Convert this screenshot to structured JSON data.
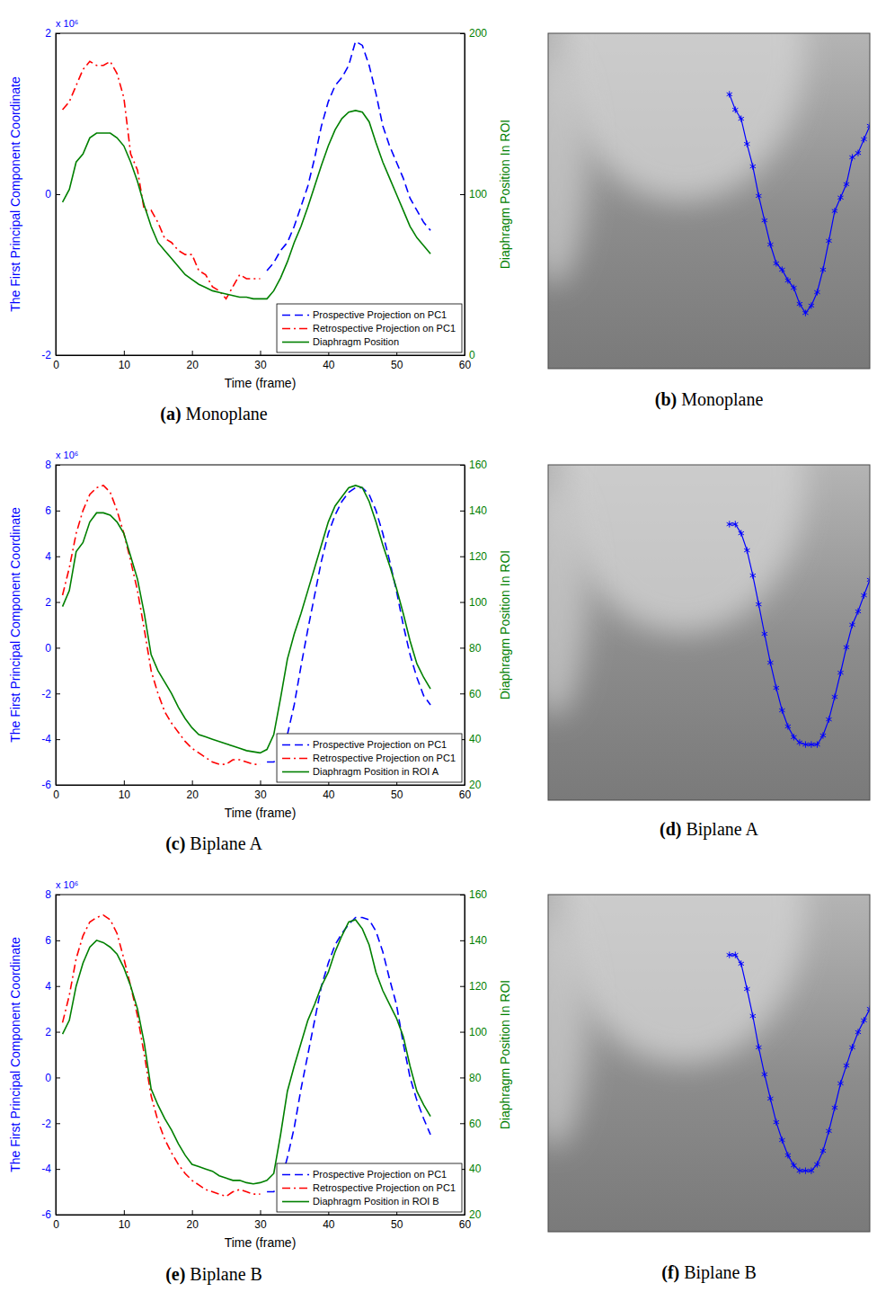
{
  "chart_data": [
    {
      "type": "line",
      "title": "(a) Monoplane",
      "x_label": "Time (frame)",
      "y_label": "The First Principal Component Coordinate",
      "y2_label": "Diaphragm Position In ROI",
      "annotations": [
        "x 10⁶"
      ],
      "xlim": [
        0,
        60
      ],
      "xticks": [
        0,
        10,
        20,
        30,
        40,
        50,
        60
      ],
      "ylim": [
        -2,
        2
      ],
      "yticks": [
        -2,
        0,
        2
      ],
      "y2lim": [
        0,
        200
      ],
      "y2ticks": [
        0,
        100,
        200
      ],
      "legend": "lower right",
      "series": [
        {
          "name": "Prospective Projection on PC1",
          "color": "#0000ff",
          "line_style": "dashed",
          "x": [
            31,
            32,
            33,
            34,
            35,
            36,
            37,
            38,
            39,
            40,
            41,
            42,
            43,
            44,
            45,
            46,
            47,
            48,
            49,
            50,
            51,
            52,
            53,
            54,
            55
          ],
          "values": [
            -0.95,
            -0.85,
            -0.7,
            -0.6,
            -0.4,
            -0.15,
            0.1,
            0.45,
            0.85,
            1.15,
            1.35,
            1.45,
            1.6,
            1.9,
            1.85,
            1.6,
            1.25,
            0.85,
            0.6,
            0.4,
            0.2,
            -0.05,
            -0.2,
            -0.35,
            -0.45
          ]
        },
        {
          "name": "Retrospective Projection on PC1",
          "color": "#ff0000",
          "line_style": "dash-dot",
          "x": [
            1,
            2,
            3,
            4,
            5,
            6,
            7,
            8,
            9,
            10,
            11,
            12,
            13,
            14,
            15,
            16,
            17,
            18,
            19,
            20,
            21,
            22,
            23,
            24,
            25,
            26,
            27,
            28,
            29,
            30
          ],
          "values": [
            1.05,
            1.15,
            1.35,
            1.55,
            1.65,
            1.6,
            1.6,
            1.65,
            1.5,
            1.2,
            0.5,
            0.3,
            -0.2,
            -0.2,
            -0.35,
            -0.55,
            -0.6,
            -0.7,
            -0.75,
            -0.75,
            -0.95,
            -1.0,
            -1.15,
            -1.2,
            -1.3,
            -1.15,
            -1.0,
            -1.05,
            -1.05,
            -1.05
          ]
        },
        {
          "name": "Diaphragm Position",
          "color": "#008000",
          "line_style": "solid",
          "axis": "y2",
          "x": [
            1,
            2,
            3,
            4,
            5,
            6,
            7,
            8,
            9,
            10,
            11,
            12,
            13,
            14,
            15,
            16,
            17,
            18,
            19,
            20,
            21,
            22,
            23,
            24,
            25,
            26,
            27,
            28,
            29,
            30,
            31,
            32,
            33,
            34,
            35,
            36,
            37,
            38,
            39,
            40,
            41,
            42,
            43,
            44,
            45,
            46,
            47,
            48,
            49,
            50,
            51,
            52,
            53,
            54,
            55
          ],
          "values": [
            95,
            103,
            120,
            125,
            135,
            138,
            138,
            138,
            135,
            130,
            120,
            108,
            93,
            80,
            70,
            65,
            60,
            55,
            50,
            47,
            44,
            42,
            40,
            39,
            38,
            37,
            36,
            36,
            35,
            35,
            35,
            40,
            48,
            58,
            70,
            80,
            92,
            105,
            118,
            130,
            140,
            147,
            151,
            152,
            151,
            145,
            132,
            120,
            110,
            100,
            90,
            80,
            73,
            68,
            63
          ]
        }
      ]
    },
    {
      "type": "line",
      "title": "(b) Monoplane",
      "tick_labels": false,
      "xlim": [
        0,
        55
      ],
      "ylim": [
        0,
        100
      ],
      "series": [
        {
          "color": "#0000ff",
          "marker": "star",
          "line_style": "solid",
          "x": [
            31,
            32,
            33,
            34,
            35,
            36,
            37,
            38,
            39,
            40,
            41,
            42,
            43,
            44,
            45,
            46,
            47,
            48,
            49,
            50,
            51,
            52,
            53,
            54,
            55
          ],
          "values": [
            81.8,
            77.2,
            74.5,
            67,
            60.3,
            51.5,
            44.2,
            37,
            31.4,
            29.5,
            26.3,
            24.1,
            19.3,
            16.6,
            18.8,
            22.8,
            29.5,
            38.1,
            47,
            51,
            55,
            63,
            64.3,
            68.4,
            72.4
          ]
        }
      ]
    },
    {
      "type": "line",
      "title": "(c) Biplane A",
      "x_label": "Time (frame)",
      "y_label": "The First Principal Component Coordinate",
      "y2_label": "Diaphragm Position In ROI",
      "annotations": [
        "x 10⁶"
      ],
      "xlim": [
        0,
        60
      ],
      "xticks": [
        0,
        10,
        20,
        30,
        40,
        50,
        60
      ],
      "ylim": [
        -6,
        8
      ],
      "yticks": [
        -6,
        -4,
        -2,
        0,
        2,
        4,
        6,
        8
      ],
      "y2lim": [
        20,
        160
      ],
      "y2ticks": [
        20,
        40,
        60,
        80,
        100,
        120,
        140,
        160
      ],
      "legend": "lower right",
      "series": [
        {
          "name": "Prospective Projection on PC1",
          "color": "#0000ff",
          "line_style": "dashed",
          "x": [
            31,
            32,
            33,
            34,
            35,
            36,
            37,
            38,
            39,
            40,
            41,
            42,
            43,
            44,
            45,
            46,
            47,
            48,
            49,
            50,
            51,
            52,
            53,
            54,
            55
          ],
          "values": [
            -5,
            -5,
            -4.7,
            -3.8,
            -2.5,
            -0.8,
            0.8,
            2.3,
            3.8,
            5,
            5.8,
            6.4,
            6.8,
            7,
            7,
            6.7,
            6,
            5,
            3.8,
            2.5,
            1,
            -0.3,
            -1.3,
            -2.1,
            -2.5
          ]
        },
        {
          "name": "Retrospective Projection on PC1",
          "color": "#ff0000",
          "line_style": "dash-dot",
          "x": [
            1,
            2,
            3,
            4,
            5,
            6,
            7,
            8,
            9,
            10,
            11,
            12,
            13,
            14,
            15,
            16,
            17,
            18,
            19,
            20,
            21,
            22,
            23,
            24,
            25,
            26,
            27,
            28,
            29,
            30
          ],
          "values": [
            2.3,
            3.5,
            5,
            6,
            6.7,
            7,
            7.1,
            6.8,
            6,
            5,
            3.8,
            2.5,
            0.8,
            -1,
            -2,
            -2.8,
            -3.3,
            -3.7,
            -4.1,
            -4.4,
            -4.6,
            -4.8,
            -5,
            -5.1,
            -5.1,
            -4.9,
            -4.9,
            -5,
            -5.1,
            -5.1
          ]
        },
        {
          "name": "Diaphragm Position in ROI A",
          "color": "#008000",
          "line_style": "solid",
          "axis": "y2",
          "x": [
            1,
            2,
            3,
            4,
            5,
            6,
            7,
            8,
            9,
            10,
            11,
            12,
            13,
            14,
            15,
            16,
            17,
            18,
            19,
            20,
            21,
            22,
            23,
            24,
            25,
            26,
            27,
            28,
            29,
            30,
            31,
            32,
            33,
            34,
            35,
            36,
            37,
            38,
            39,
            40,
            41,
            42,
            43,
            44,
            45,
            46,
            47,
            48,
            49,
            50,
            51,
            52,
            53,
            54,
            55
          ],
          "values": [
            98,
            105,
            122,
            126,
            135,
            139,
            139,
            138,
            135,
            130,
            120,
            110,
            95,
            77,
            70,
            65,
            60,
            54,
            49,
            45,
            42,
            41,
            40,
            39,
            38,
            37,
            36,
            35,
            34.5,
            34,
            35.5,
            42,
            58,
            75,
            86,
            95,
            105,
            115,
            125,
            135,
            142,
            146,
            150,
            151,
            150,
            144,
            135,
            125,
            116,
            106,
            95,
            83,
            73,
            67,
            62
          ]
        }
      ]
    },
    {
      "type": "line",
      "title": "(d) Biplane A",
      "tick_labels": false,
      "xlim": [
        0,
        55
      ],
      "ylim": [
        0,
        100
      ],
      "series": [
        {
          "color": "#0000ff",
          "marker": "star",
          "line_style": "solid",
          "x": [
            31,
            32,
            33,
            34,
            35,
            36,
            37,
            38,
            39,
            40,
            41,
            42,
            43,
            44,
            45,
            46,
            47,
            48,
            49,
            50,
            51,
            52,
            53,
            54,
            55
          ],
          "values": [
            82.3,
            82.3,
            79.6,
            74.5,
            67,
            58.4,
            49.6,
            41,
            33.5,
            26.8,
            22,
            18.8,
            17.2,
            16.6,
            16.6,
            16.6,
            19.3,
            24.1,
            30.8,
            38,
            45.6,
            52.3,
            56.3,
            61.1,
            65.7
          ]
        }
      ]
    },
    {
      "type": "line",
      "title": "(e) Biplane B",
      "x_label": "Time (frame)",
      "y_label": "The First Principal Component Coordinate",
      "y2_label": "Diaphragm Position In ROI",
      "annotations": [
        "x 10⁶"
      ],
      "xlim": [
        0,
        60
      ],
      "xticks": [
        0,
        10,
        20,
        30,
        40,
        50,
        60
      ],
      "ylim": [
        -6,
        8
      ],
      "yticks": [
        -6,
        -4,
        -2,
        0,
        2,
        4,
        6,
        8
      ],
      "y2lim": [
        20,
        160
      ],
      "y2ticks": [
        20,
        40,
        60,
        80,
        100,
        120,
        140,
        160
      ],
      "legend": "lower right",
      "series": [
        {
          "name": "Prospective Projection on PC1",
          "color": "#0000ff",
          "line_style": "dashed",
          "x": [
            31,
            32,
            33,
            34,
            35,
            36,
            37,
            38,
            39,
            40,
            41,
            42,
            43,
            44,
            45,
            46,
            47,
            48,
            49,
            50,
            51,
            52,
            53,
            54,
            55
          ],
          "values": [
            -5,
            -5,
            -4.6,
            -3.5,
            -2.2,
            -0.5,
            1,
            2.5,
            4,
            5,
            5.8,
            6.3,
            6.7,
            7,
            7,
            6.9,
            6.4,
            5.5,
            4.3,
            3.2,
            1.5,
            0,
            -1,
            -1.8,
            -2.5
          ]
        },
        {
          "name": "Retrospective Projection on PC1",
          "color": "#ff0000",
          "line_style": "dash-dot",
          "x": [
            1,
            2,
            3,
            4,
            5,
            6,
            7,
            8,
            9,
            10,
            11,
            12,
            13,
            14,
            15,
            16,
            17,
            18,
            19,
            20,
            21,
            22,
            23,
            24,
            25,
            26,
            27,
            28,
            29,
            30
          ],
          "values": [
            2.4,
            3.6,
            5.2,
            6.2,
            6.8,
            7,
            7.1,
            6.9,
            6.3,
            5.2,
            4,
            2.7,
            1,
            -0.8,
            -1.9,
            -2.7,
            -3.3,
            -3.8,
            -4.2,
            -4.5,
            -4.7,
            -4.9,
            -5,
            -5.1,
            -5.2,
            -5,
            -4.9,
            -5,
            -5.1,
            -5.1
          ]
        },
        {
          "name": "Diaphragm Position in ROI B",
          "color": "#008000",
          "line_style": "solid",
          "axis": "y2",
          "x": [
            1,
            2,
            3,
            4,
            5,
            6,
            7,
            8,
            9,
            10,
            11,
            12,
            13,
            14,
            15,
            16,
            17,
            18,
            19,
            20,
            21,
            22,
            23,
            24,
            25,
            26,
            27,
            28,
            29,
            30,
            31,
            32,
            33,
            34,
            35,
            36,
            37,
            38,
            39,
            40,
            41,
            42,
            43,
            44,
            45,
            46,
            47,
            48,
            49,
            50,
            51,
            52,
            53,
            54,
            55
          ],
          "values": [
            99,
            105,
            120,
            130,
            137,
            140,
            139,
            137,
            134,
            128,
            120,
            110,
            95,
            75,
            68,
            62,
            57,
            51,
            46,
            42,
            41,
            40,
            39,
            37,
            36,
            35,
            35,
            34,
            33.5,
            34,
            35,
            38,
            55,
            74,
            85,
            95,
            105,
            112,
            120,
            126,
            135,
            142,
            148,
            149,
            145,
            138,
            126,
            118,
            112,
            106,
            98,
            85,
            74,
            68,
            63
          ]
        }
      ]
    },
    {
      "type": "line",
      "title": "(f) Biplane B",
      "tick_labels": false,
      "xlim": [
        0,
        55
      ],
      "ylim": [
        0,
        100
      ],
      "series": [
        {
          "color": "#0000ff",
          "marker": "star",
          "line_style": "solid",
          "x": [
            31,
            32,
            33,
            34,
            35,
            36,
            37,
            38,
            39,
            40,
            41,
            42,
            43,
            44,
            45,
            46,
            47,
            48,
            49,
            50,
            51,
            52,
            53,
            54,
            55
          ],
          "values": [
            82.1,
            82.1,
            79.5,
            72,
            64,
            54.7,
            46.7,
            39.5,
            32.5,
            27.2,
            22.7,
            19.7,
            18.1,
            18.1,
            18.1,
            20,
            24,
            29.9,
            36.8,
            44,
            49.3,
            54.7,
            59.2,
            62.7,
            66.1
          ]
        }
      ]
    }
  ]
}
